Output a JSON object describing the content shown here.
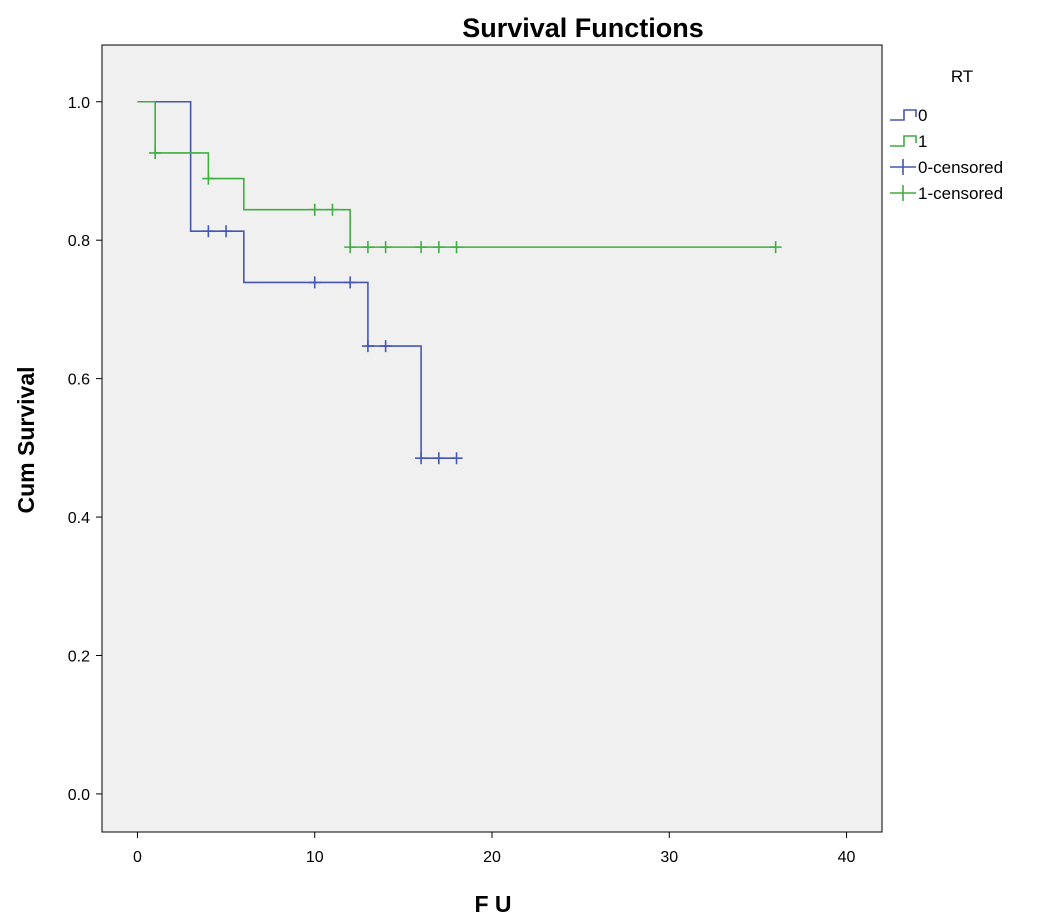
{
  "chart_data": {
    "type": "line",
    "title": "Survival Functions",
    "xlabel": "F U",
    "ylabel": "Cum Survival",
    "xlim": [
      -2,
      42
    ],
    "ylim": [
      -0.055,
      1.082
    ],
    "xticks": [
      0,
      10,
      20,
      30,
      40
    ],
    "yticks": [
      0.0,
      0.2,
      0.4,
      0.6,
      0.8,
      1.0
    ],
    "xtick_labels": [
      "0",
      "10",
      "20",
      "30",
      "40"
    ],
    "ytick_labels": [
      "0.0",
      "0.2",
      "0.4",
      "0.6",
      "0.8",
      "1.0"
    ],
    "grid": false,
    "legend": {
      "title": "RT",
      "placement": "right",
      "entries": [
        "0",
        "1",
        "0-censored",
        "1-censored"
      ]
    },
    "series": [
      {
        "name": "0",
        "color": "#4557b5",
        "steps": [
          [
            0,
            1.0
          ],
          [
            3,
            0.813
          ],
          [
            6,
            0.739
          ],
          [
            13,
            0.647
          ],
          [
            16,
            0.485
          ],
          [
            18,
            0.485
          ]
        ],
        "censored": [
          [
            4,
            0.813
          ],
          [
            5,
            0.813
          ],
          [
            10,
            0.739
          ],
          [
            12,
            0.739
          ],
          [
            13,
            0.647
          ],
          [
            14,
            0.647
          ],
          [
            16,
            0.485
          ],
          [
            17,
            0.485
          ],
          [
            18,
            0.485
          ]
        ]
      },
      {
        "name": "1",
        "color": "#3fae3f",
        "steps": [
          [
            0,
            1.0
          ],
          [
            1,
            0.926
          ],
          [
            4,
            0.889
          ],
          [
            6,
            0.844
          ],
          [
            12,
            0.79
          ],
          [
            36,
            0.79
          ]
        ],
        "censored": [
          [
            1,
            0.926
          ],
          [
            4,
            0.889
          ],
          [
            10,
            0.844
          ],
          [
            11,
            0.844
          ],
          [
            12,
            0.79
          ],
          [
            13,
            0.79
          ],
          [
            14,
            0.79
          ],
          [
            16,
            0.79
          ],
          [
            17,
            0.79
          ],
          [
            18,
            0.79
          ],
          [
            36,
            0.79
          ]
        ]
      }
    ]
  }
}
